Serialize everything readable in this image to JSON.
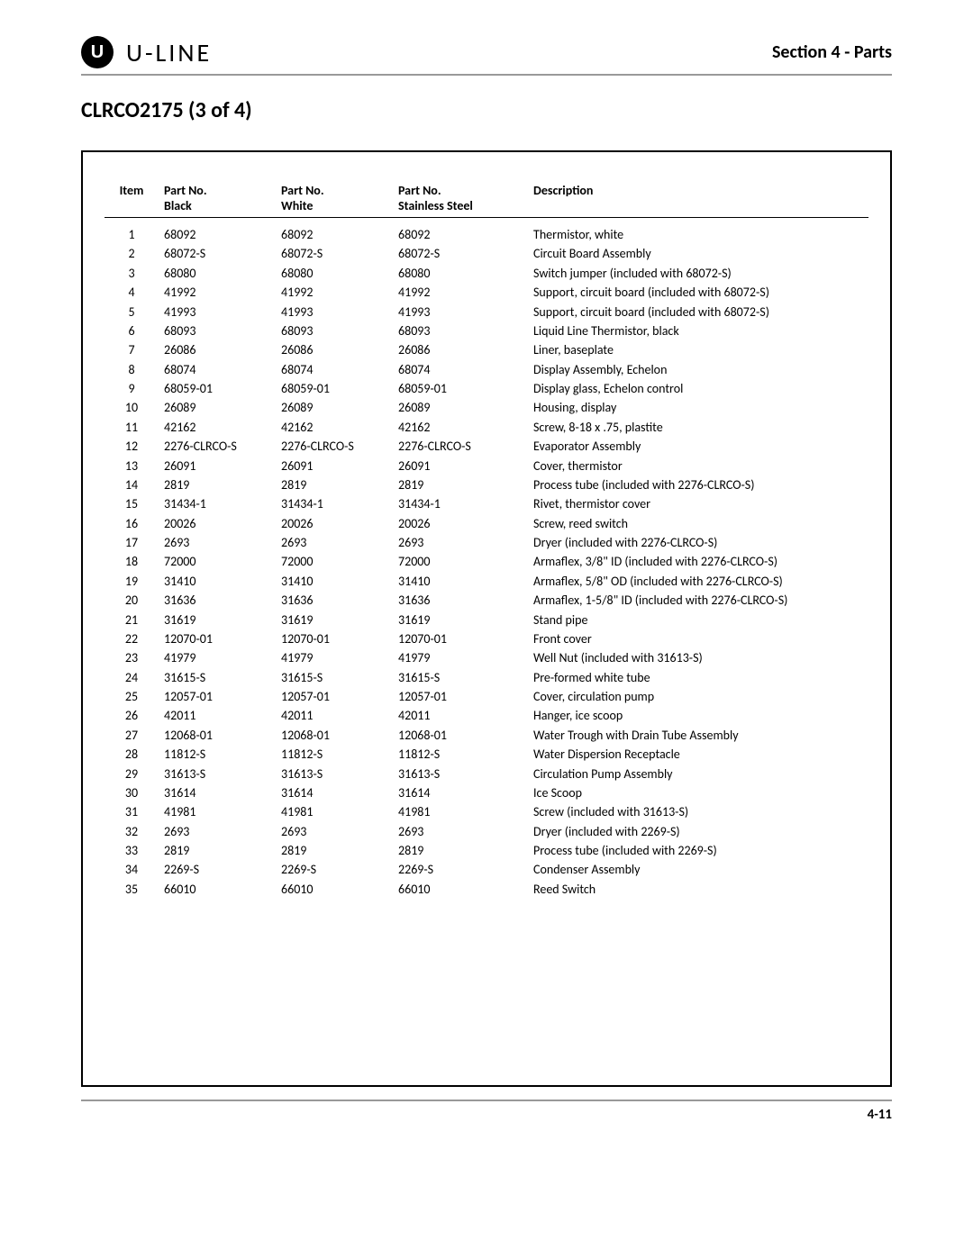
{
  "header": {
    "logo_letter": "U",
    "brand_text": "U-LINE",
    "section_label": "Section 4 - Parts"
  },
  "page_heading": "CLRCO2175 (3 of 4)",
  "table": {
    "columns": {
      "item": "Item",
      "black_1": "Part No.",
      "black_2": "Black",
      "white_1": "Part No.",
      "white_2": "White",
      "ss_1": "Part No.",
      "ss_2": "Stainless Steel",
      "desc": "Description"
    },
    "rows": [
      {
        "item": "1",
        "black": "68092",
        "white": "68092",
        "ss": "68092",
        "desc": "Thermistor, white"
      },
      {
        "item": "2",
        "black": "68072-S",
        "white": "68072-S",
        "ss": "68072-S",
        "desc": "Circuit Board Assembly"
      },
      {
        "item": "3",
        "black": "68080",
        "white": "68080",
        "ss": "68080",
        "desc": "Switch jumper (included with 68072-S)"
      },
      {
        "item": "4",
        "black": "41992",
        "white": "41992",
        "ss": "41992",
        "desc": "Support, circuit board (included with 68072-S)"
      },
      {
        "item": "5",
        "black": "41993",
        "white": "41993",
        "ss": "41993",
        "desc": "Support, circuit board (included with 68072-S)"
      },
      {
        "item": "6",
        "black": "68093",
        "white": "68093",
        "ss": "68093",
        "desc": "Liquid Line Thermistor, black"
      },
      {
        "item": "7",
        "black": "26086",
        "white": "26086",
        "ss": "26086",
        "desc": "Liner, baseplate"
      },
      {
        "item": "8",
        "black": "68074",
        "white": "68074",
        "ss": "68074",
        "desc": "Display Assembly, Echelon"
      },
      {
        "item": "9",
        "black": "68059-01",
        "white": "68059-01",
        "ss": "68059-01",
        "desc": "Display glass, Echelon control"
      },
      {
        "item": "10",
        "black": "26089",
        "white": "26089",
        "ss": "26089",
        "desc": "Housing, display"
      },
      {
        "item": "11",
        "black": "42162",
        "white": "42162",
        "ss": "42162",
        "desc": "Screw, 8-18 x .75, plastite"
      },
      {
        "item": "12",
        "black": "2276-CLRCO-S",
        "white": "2276-CLRCO-S",
        "ss": "2276-CLRCO-S",
        "desc": "Evaporator Assembly"
      },
      {
        "item": "13",
        "black": "26091",
        "white": "26091",
        "ss": "26091",
        "desc": "Cover, thermistor"
      },
      {
        "item": "14",
        "black": "2819",
        "white": "2819",
        "ss": "2819",
        "desc": "Process tube (included with 2276-CLRCO-S)"
      },
      {
        "item": "15",
        "black": "31434-1",
        "white": "31434-1",
        "ss": "31434-1",
        "desc": "Rivet, thermistor cover"
      },
      {
        "item": "16",
        "black": "20026",
        "white": "20026",
        "ss": "20026",
        "desc": "Screw, reed switch"
      },
      {
        "item": "17",
        "black": "2693",
        "white": "2693",
        "ss": "2693",
        "desc": "Dryer (included with 2276-CLRCO-S)"
      },
      {
        "item": "18",
        "black": "72000",
        "white": "72000",
        "ss": "72000",
        "desc": "Armaflex, 3/8\" ID (included with 2276-CLRCO-S)"
      },
      {
        "item": "19",
        "black": "31410",
        "white": "31410",
        "ss": "31410",
        "desc": "Armaflex, 5/8\" OD (included with 2276-CLRCO-S)"
      },
      {
        "item": "20",
        "black": "31636",
        "white": "31636",
        "ss": "31636",
        "desc": "Armaflex, 1-5/8\" ID (included with 2276-CLRCO-S)"
      },
      {
        "item": "21",
        "black": "31619",
        "white": "31619",
        "ss": "31619",
        "desc": "Stand pipe"
      },
      {
        "item": "22",
        "black": "12070-01",
        "white": "12070-01",
        "ss": "12070-01",
        "desc": "Front cover"
      },
      {
        "item": "23",
        "black": "41979",
        "white": "41979",
        "ss": "41979",
        "desc": "Well Nut (included with 31613-S)"
      },
      {
        "item": "24",
        "black": "31615-S",
        "white": "31615-S",
        "ss": "31615-S",
        "desc": "Pre-formed white tube"
      },
      {
        "item": "25",
        "black": "12057-01",
        "white": "12057-01",
        "ss": "12057-01",
        "desc": "Cover, circulation pump"
      },
      {
        "item": "26",
        "black": "42011",
        "white": "42011",
        "ss": "42011",
        "desc": "Hanger, ice scoop"
      },
      {
        "item": "27",
        "black": "12068-01",
        "white": "12068-01",
        "ss": "12068-01",
        "desc": "Water Trough with Drain Tube Assembly"
      },
      {
        "item": "28",
        "black": "11812-S",
        "white": "11812-S",
        "ss": "11812-S",
        "desc": "Water Dispersion Receptacle"
      },
      {
        "item": "29",
        "black": "31613-S",
        "white": "31613-S",
        "ss": "31613-S",
        "desc": "Circulation Pump Assembly"
      },
      {
        "item": "30",
        "black": "31614",
        "white": "31614",
        "ss": "31614",
        "desc": "Ice Scoop"
      },
      {
        "item": "31",
        "black": "41981",
        "white": "41981",
        "ss": "41981",
        "desc": "Screw (included with 31613-S)"
      },
      {
        "item": "32",
        "black": "2693",
        "white": "2693",
        "ss": "2693",
        "desc": "Dryer (included with 2269-S)"
      },
      {
        "item": "33",
        "black": "2819",
        "white": "2819",
        "ss": "2819",
        "desc": "Process tube (included with 2269-S)"
      },
      {
        "item": "34",
        "black": "2269-S",
        "white": "2269-S",
        "ss": "2269-S",
        "desc": "Condenser Assembly"
      },
      {
        "item": "35",
        "black": "66010",
        "white": "66010",
        "ss": "66010",
        "desc": "Reed Switch"
      }
    ]
  },
  "footer": {
    "page_number": "4-11"
  }
}
